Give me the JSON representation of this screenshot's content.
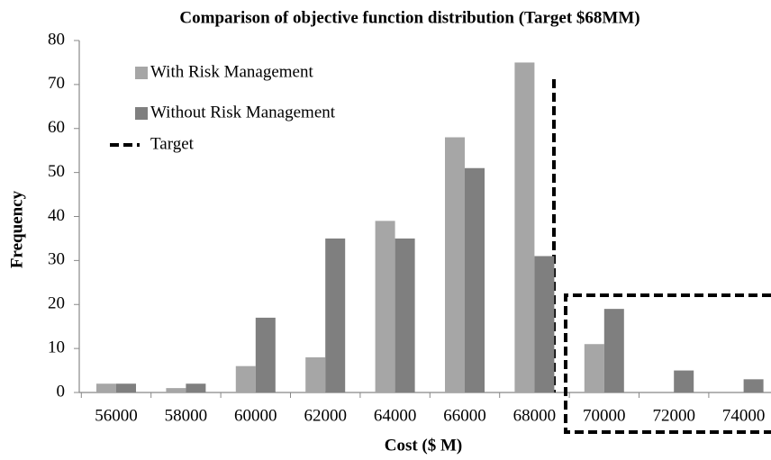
{
  "chart_data": {
    "type": "bar",
    "title": "Comparison of objective function distribution (Target $68MM)",
    "xlabel": "Cost ($ M)",
    "ylabel": "Frequency",
    "categories": [
      "56000",
      "58000",
      "60000",
      "62000",
      "64000",
      "66000",
      "68000",
      "70000",
      "72000",
      "74000"
    ],
    "series": [
      {
        "name": "With Risk Management",
        "color": "#a6a6a6",
        "values": [
          2,
          1,
          6,
          8,
          39,
          58,
          75,
          11,
          0,
          0
        ]
      },
      {
        "name": "Without Risk Management",
        "color": "#7f7f7f",
        "values": [
          2,
          2,
          17,
          35,
          35,
          51,
          31,
          19,
          5,
          3
        ]
      }
    ],
    "target": {
      "name": "Target"
    },
    "ylim": [
      0,
      80
    ],
    "yticks": [
      0,
      10,
      20,
      30,
      40,
      50,
      60,
      70,
      80
    ],
    "grid": false
  }
}
